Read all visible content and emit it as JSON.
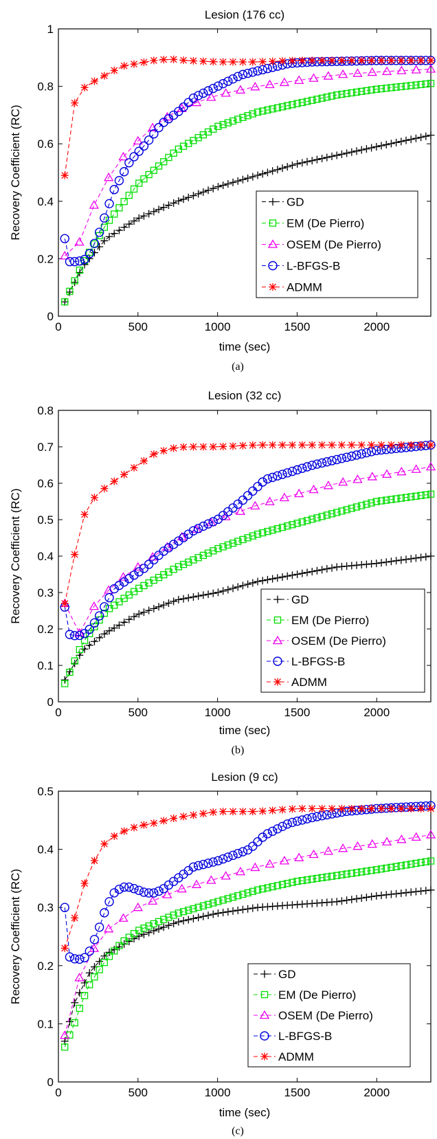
{
  "chart_data": [
    {
      "type": "line",
      "title": "Lesion (176 cc)",
      "caption": "(a)",
      "xlabel": "time (sec)",
      "ylabel": "Recovery Coefficient (RC)",
      "xlim": [
        0,
        2340
      ],
      "ylim": [
        0,
        1
      ],
      "xticks": [
        0,
        500,
        1000,
        1500,
        2000
      ],
      "yticks": [
        0,
        0.2,
        0.4,
        0.6,
        0.8,
        1
      ],
      "ytick_labels": [
        "0",
        "0.2",
        "0.4",
        "0.6",
        "0.8",
        "1"
      ],
      "grid": false,
      "legend_position": "lower-right",
      "series": [
        {
          "name": "GD",
          "color": "#000000",
          "marker": "plus",
          "n": 75,
          "x": [
            40,
            150,
            300,
            500,
            750,
            1000,
            1250,
            1500,
            1750,
            2000,
            2340
          ],
          "y": [
            0.05,
            0.17,
            0.27,
            0.34,
            0.4,
            0.45,
            0.49,
            0.53,
            0.56,
            0.59,
            0.63
          ]
        },
        {
          "name": "EM (De Pierro)",
          "color": "#00dd00",
          "marker": "square",
          "n": 75,
          "x": [
            40,
            150,
            300,
            500,
            750,
            1000,
            1250,
            1500,
            1750,
            2000,
            2340
          ],
          "y": [
            0.05,
            0.18,
            0.32,
            0.46,
            0.58,
            0.66,
            0.71,
            0.74,
            0.77,
            0.79,
            0.81
          ]
        },
        {
          "name": "OSEM (De Pierro)",
          "color": "#ee00ee",
          "marker": "triangle",
          "n": 26,
          "x": [
            40,
            100,
            200,
            300,
            400,
            500,
            600,
            700,
            800,
            1000,
            1250,
            1500,
            1750,
            2000,
            2340
          ],
          "y": [
            0.21,
            0.21,
            0.36,
            0.47,
            0.55,
            0.61,
            0.66,
            0.7,
            0.73,
            0.77,
            0.8,
            0.82,
            0.84,
            0.85,
            0.86
          ]
        },
        {
          "name": "L-BFGS-B",
          "color": "#0000dd",
          "marker": "circle",
          "n": 75,
          "x": [
            40,
            70,
            120,
            180,
            250,
            350,
            450,
            550,
            650,
            750,
            850,
            1000,
            1150,
            1300,
            1450,
            1600,
            2000,
            2340
          ],
          "y": [
            0.27,
            0.19,
            0.19,
            0.2,
            0.28,
            0.44,
            0.54,
            0.6,
            0.67,
            0.71,
            0.76,
            0.8,
            0.84,
            0.86,
            0.88,
            0.885,
            0.89,
            0.89
          ]
        },
        {
          "name": "ADMM",
          "color": "#ff0000",
          "marker": "asterisk",
          "n": 38,
          "x": [
            40,
            100,
            150,
            200,
            300,
            400,
            500,
            600,
            700,
            800,
            1000,
            1250,
            1500,
            2000,
            2340
          ],
          "y": [
            0.49,
            0.74,
            0.79,
            0.81,
            0.84,
            0.87,
            0.88,
            0.89,
            0.895,
            0.89,
            0.885,
            0.885,
            0.89,
            0.89,
            0.89
          ]
        }
      ]
    },
    {
      "type": "line",
      "title": "Lesion (32 cc)",
      "caption": "(b)",
      "xlabel": "time (sec)",
      "ylabel": "Recovery Coefficient (RC)",
      "xlim": [
        0,
        2340
      ],
      "ylim": [
        0,
        0.8
      ],
      "xticks": [
        0,
        500,
        1000,
        1500,
        2000
      ],
      "yticks": [
        0,
        0.1,
        0.2,
        0.3,
        0.4,
        0.5,
        0.6,
        0.7,
        0.8
      ],
      "ytick_labels": [
        "0",
        "0.1",
        "0.2",
        "0.3",
        "0.4",
        "0.5",
        "0.6",
        "0.7",
        "0.8"
      ],
      "grid": false,
      "legend_position": "lower-right",
      "series": [
        {
          "name": "GD",
          "color": "#000000",
          "marker": "plus",
          "n": 75,
          "x": [
            40,
            150,
            300,
            500,
            750,
            1000,
            1250,
            1500,
            1750,
            2000,
            2340
          ],
          "y": [
            0.06,
            0.14,
            0.19,
            0.24,
            0.28,
            0.3,
            0.33,
            0.35,
            0.37,
            0.38,
            0.4
          ]
        },
        {
          "name": "EM (De Pierro)",
          "color": "#00dd00",
          "marker": "square",
          "n": 75,
          "x": [
            40,
            150,
            300,
            500,
            750,
            1000,
            1250,
            1500,
            1750,
            2000,
            2340
          ],
          "y": [
            0.05,
            0.16,
            0.25,
            0.31,
            0.37,
            0.42,
            0.46,
            0.49,
            0.52,
            0.55,
            0.57
          ]
        },
        {
          "name": "OSEM (De Pierro)",
          "color": "#ee00ee",
          "marker": "triangle",
          "n": 26,
          "x": [
            40,
            100,
            200,
            300,
            400,
            500,
            600,
            700,
            800,
            1000,
            1250,
            1500,
            1750,
            2000,
            2340
          ],
          "y": [
            0.27,
            0.16,
            0.25,
            0.3,
            0.34,
            0.37,
            0.4,
            0.43,
            0.46,
            0.5,
            0.54,
            0.57,
            0.6,
            0.62,
            0.645
          ]
        },
        {
          "name": "L-BFGS-B",
          "color": "#0000dd",
          "marker": "circle",
          "n": 75,
          "x": [
            40,
            70,
            120,
            180,
            250,
            350,
            450,
            550,
            650,
            750,
            850,
            1000,
            1150,
            1300,
            1450,
            1600,
            2000,
            2340
          ],
          "y": [
            0.26,
            0.185,
            0.18,
            0.19,
            0.23,
            0.31,
            0.34,
            0.37,
            0.41,
            0.44,
            0.47,
            0.5,
            0.55,
            0.61,
            0.63,
            0.65,
            0.69,
            0.705
          ]
        },
        {
          "name": "ADMM",
          "color": "#ff0000",
          "marker": "asterisk",
          "n": 38,
          "x": [
            40,
            100,
            150,
            200,
            300,
            400,
            500,
            600,
            700,
            800,
            1000,
            1250,
            1500,
            2000,
            2340
          ],
          "y": [
            0.27,
            0.4,
            0.5,
            0.55,
            0.59,
            0.62,
            0.65,
            0.68,
            0.695,
            0.7,
            0.7,
            0.705,
            0.705,
            0.705,
            0.705
          ]
        }
      ]
    },
    {
      "type": "line",
      "title": "Lesion (9 cc)",
      "caption": "(c)",
      "xlabel": "time (sec)",
      "ylabel": "Recovery Coefficient (RC)",
      "xlim": [
        0,
        2340
      ],
      "ylim": [
        0,
        0.5
      ],
      "xticks": [
        0,
        500,
        1000,
        1500,
        2000
      ],
      "yticks": [
        0,
        0.1,
        0.2,
        0.3,
        0.4,
        0.5
      ],
      "ytick_labels": [
        "0",
        "0.1",
        "0.2",
        "0.3",
        "0.4",
        "0.5"
      ],
      "grid": false,
      "legend_position": "lower-right",
      "series": [
        {
          "name": "GD",
          "color": "#000000",
          "marker": "plus",
          "n": 75,
          "x": [
            40,
            100,
            200,
            300,
            500,
            750,
            1000,
            1250,
            1500,
            1750,
            2000,
            2340
          ],
          "y": [
            0.07,
            0.135,
            0.19,
            0.22,
            0.25,
            0.275,
            0.29,
            0.3,
            0.305,
            0.31,
            0.32,
            0.33
          ]
        },
        {
          "name": "EM (De Pierro)",
          "color": "#00dd00",
          "marker": "square",
          "n": 75,
          "x": [
            40,
            100,
            150,
            200,
            300,
            400,
            500,
            750,
            1000,
            1250,
            1500,
            1750,
            2000,
            2340
          ],
          "y": [
            0.06,
            0.1,
            0.14,
            0.17,
            0.21,
            0.24,
            0.26,
            0.29,
            0.31,
            0.33,
            0.345,
            0.355,
            0.365,
            0.38
          ]
        },
        {
          "name": "OSEM (De Pierro)",
          "color": "#ee00ee",
          "marker": "triangle",
          "n": 26,
          "x": [
            40,
            100,
            200,
            300,
            400,
            500,
            750,
            1000,
            1250,
            1500,
            1750,
            2000,
            2340
          ],
          "y": [
            0.08,
            0.16,
            0.22,
            0.26,
            0.28,
            0.3,
            0.33,
            0.35,
            0.37,
            0.385,
            0.4,
            0.41,
            0.425
          ]
        },
        {
          "name": "L-BFGS-B",
          "color": "#0000dd",
          "marker": "circle",
          "n": 75,
          "x": [
            40,
            70,
            120,
            180,
            250,
            300,
            350,
            400,
            450,
            500,
            550,
            600,
            650,
            750,
            850,
            1000,
            1100,
            1200,
            1300,
            1450,
            1600,
            1800,
            2000,
            2340
          ],
          "y": [
            0.3,
            0.215,
            0.21,
            0.215,
            0.26,
            0.3,
            0.325,
            0.335,
            0.335,
            0.33,
            0.325,
            0.325,
            0.33,
            0.35,
            0.37,
            0.38,
            0.39,
            0.4,
            0.425,
            0.445,
            0.455,
            0.465,
            0.47,
            0.475
          ]
        },
        {
          "name": "ADMM",
          "color": "#ff0000",
          "marker": "asterisk",
          "n": 38,
          "x": [
            40,
            100,
            150,
            200,
            250,
            300,
            400,
            500,
            600,
            750,
            1000,
            1250,
            1500,
            2000,
            2340
          ],
          "y": [
            0.23,
            0.28,
            0.33,
            0.37,
            0.39,
            0.415,
            0.43,
            0.44,
            0.445,
            0.455,
            0.465,
            0.465,
            0.47,
            0.47,
            0.47
          ]
        }
      ]
    }
  ]
}
